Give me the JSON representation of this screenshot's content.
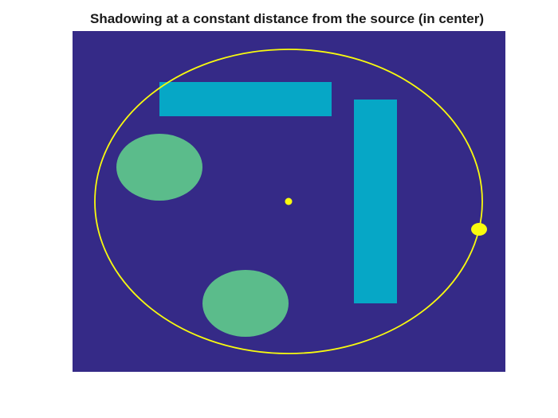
{
  "title": "Shadowing at a constant distance from the source (in center)",
  "colors": {
    "background": "#ffffff",
    "field": "#352a87",
    "rectangle_obstacle": "#06a7c6",
    "ellipse_obstacle": "#5bbc8b",
    "source": "#f9fb0e",
    "orbit": "#f9fb0e"
  },
  "scene": {
    "source": {
      "shape": "dot",
      "location": "center"
    },
    "orbit": {
      "shape": "ellipse",
      "description_shown": false
    },
    "moving_marker": {
      "shape": "dot",
      "on_orbit": true
    },
    "obstacles": [
      {
        "kind": "rectangle",
        "id": "horizontal-bar"
      },
      {
        "kind": "rectangle",
        "id": "vertical-bar"
      },
      {
        "kind": "ellipse",
        "id": "upper-left-blob"
      },
      {
        "kind": "ellipse",
        "id": "lower-blob"
      }
    ]
  }
}
